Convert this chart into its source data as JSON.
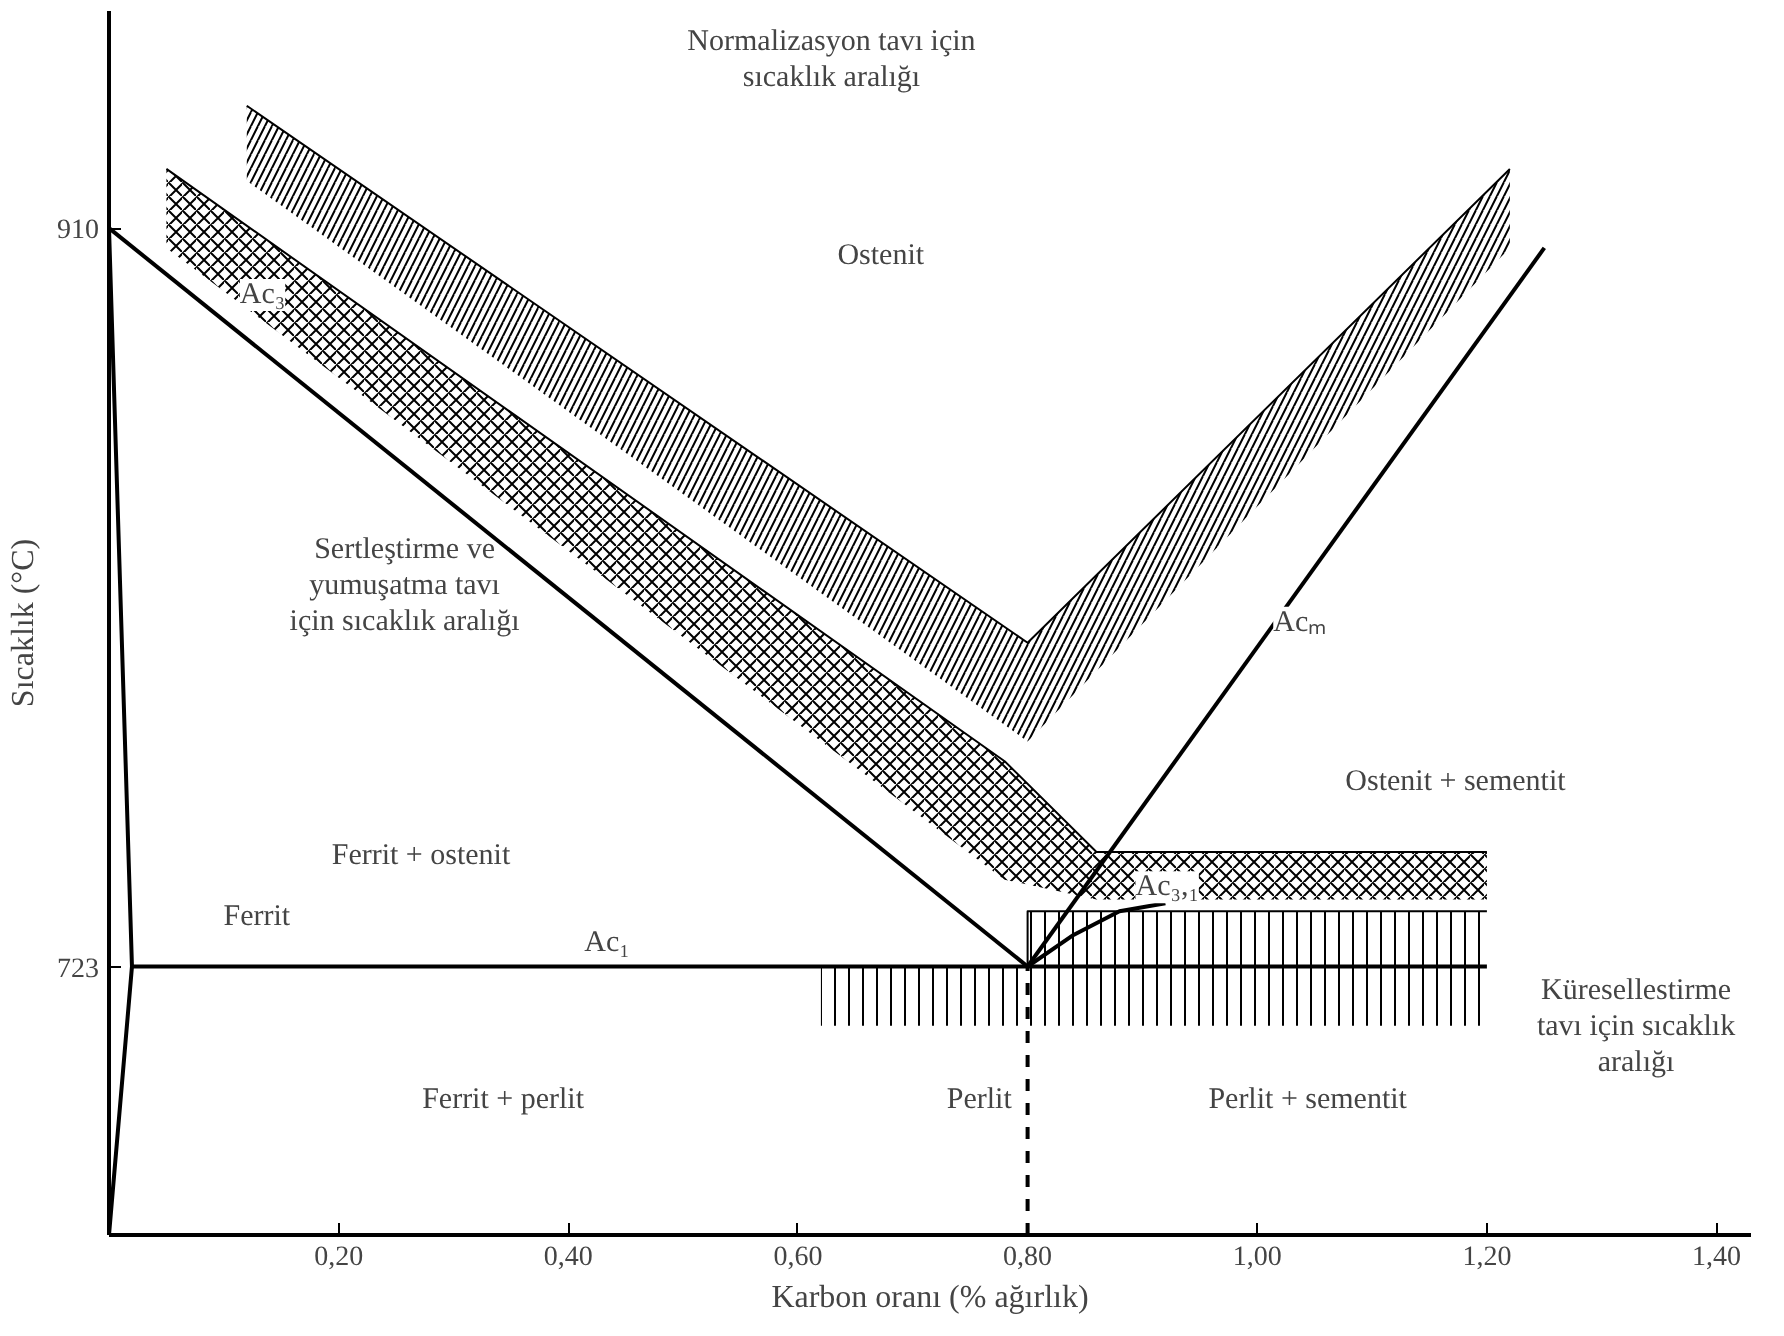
{
  "chart_data": {
    "type": "line",
    "xlabel": "Karbon oranı (% ağırlık)",
    "ylabel": "Sıcaklık (°C)",
    "xlim": [
      0,
      1.43
    ],
    "ylim": [
      655,
      965
    ],
    "xticks": [
      {
        "value": 0.2,
        "label": "0,20"
      },
      {
        "value": 0.4,
        "label": "0,40"
      },
      {
        "value": 0.6,
        "label": "0,60"
      },
      {
        "value": 0.8,
        "label": "0,80"
      },
      {
        "value": 1.0,
        "label": "1,00"
      },
      {
        "value": 1.2,
        "label": "1,20"
      },
      {
        "value": 1.4,
        "label": "1,40"
      }
    ],
    "yticks": [
      723,
      910
    ],
    "grid": false,
    "series": [
      {
        "type": "line",
        "color": "#000000",
        "x": [
          0.12,
          0.8,
          1.22
        ],
        "values": [
          941,
          805,
          925
        ],
        "upper": [
          941,
          805,
          925
        ],
        "lower": [
          922,
          780,
          905
        ]
      },
      {
        "type": "line",
        "color": "#000000",
        "x": [
          0.05,
          0.78,
          0.86,
          1.2
        ],
        "values": [
          925,
          775,
          752,
          752
        ],
        "upper": [
          925,
          775,
          752,
          752
        ],
        "lower": [
          905,
          745,
          740,
          740
        ]
      },
      {
        "type": "line",
        "color": "#000000",
        "x": [
          0.62,
          0.8,
          0.8,
          1.2
        ],
        "values": [
          723,
          723,
          737,
          737
        ],
        "upper": [
          723,
          723,
          737,
          737
        ],
        "lower": [
          708,
          708,
          708,
          708
        ]
      },
      {
        "color": "#000000",
        "x": [
          0,
          0.8
        ],
        "values": [
          910,
          723
        ]
      },
      {
        "color": "#000000",
        "x": [
          0.8,
          1.25
        ],
        "values": [
          723,
          905
        ]
      },
      {
        "color": "#000000",
        "x": [
          0.02,
          1.2
        ],
        "values": [
          723,
          723
        ]
      },
      {
        "color": "#000000",
        "x": [
          0,
          0.02,
          0
        ],
        "values": [
          655,
          723,
          910
        ]
      },
      {
        "color": "#000000",
        "x": [
          0.8,
          0.84,
          0.88,
          0.92
        ],
        "values": [
          723,
          731,
          737,
          739
        ]
      },
      {
        "color": "#000000",
        "line_style": "dashed",
        "x": [
          0.8,
          0.8
        ],
        "values": [
          655,
          723
        ]
      }
    ],
    "annotations": [
      "Ostenit",
      {
        "text": "Ac₃",
        "x": 0.1,
        "y": 887
      },
      {
        "text": "Acₘ",
        "x": 1.0,
        "y": 804
      },
      "Ostenit + sementit",
      "Ferrit + ostenit",
      "Ferrit",
      {
        "text": "Ac₁",
        "x": 0.4,
        "y": 723
      },
      {
        "text": "Ac₃,₁",
        "x": 0.88,
        "y": 737
      },
      "Ferrit + perlit",
      "Perlit + sementit",
      "Perlit",
      "Normalizasyon tavı için\nsıcaklık aralığı",
      "Sertleştirme ve\nyumuşatma tavı\niçin sıcaklık aralığı",
      "Küresellestirme\ntavı için sıcaklık\naralığı"
    ]
  }
}
